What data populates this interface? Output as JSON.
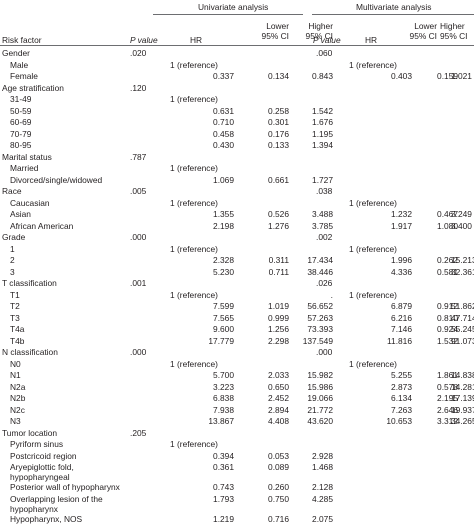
{
  "header": {
    "univariate": "Univariate analysis",
    "multivariate": "Multivariate analysis",
    "risk_factor": "Risk factor",
    "p_value": "P value",
    "hr": "HR",
    "lower1": "Lower",
    "lower2": "95% CI",
    "higher1": "Higher",
    "higher2": "95% CI"
  },
  "rows": [
    {
      "t": "g",
      "label": "Gender",
      "up": ".020",
      "mp": ".060"
    },
    {
      "t": "s",
      "label": "Male",
      "u": "ref",
      "m": "ref"
    },
    {
      "t": "s",
      "label": "Female",
      "uhr": "0.337",
      "ulo": "0.134",
      "uhi": "0.843",
      "mhr": "0.403",
      "mlo": "0.159",
      "mhi": "1.021"
    },
    {
      "t": "g",
      "label": "Age stratification",
      "up": ".120"
    },
    {
      "t": "s",
      "label": "31-49",
      "u": "ref"
    },
    {
      "t": "s",
      "label": "50-59",
      "uhr": "0.631",
      "ulo": "0.258",
      "uhi": "1.542"
    },
    {
      "t": "s",
      "label": "60-69",
      "uhr": "0.710",
      "ulo": "0.301",
      "uhi": "1.676"
    },
    {
      "t": "s",
      "label": "70-79",
      "uhr": "0.458",
      "ulo": "0.176",
      "uhi": "1.195"
    },
    {
      "t": "s",
      "label": "80-95",
      "uhr": "0.430",
      "ulo": "0.133",
      "uhi": "1.394"
    },
    {
      "t": "g",
      "label": "Marital status",
      "up": ".787"
    },
    {
      "t": "s",
      "label": "Married",
      "u": "ref"
    },
    {
      "t": "s",
      "label": "Divorced/single/widowed",
      "uhr": "1.069",
      "ulo": "0.661",
      "uhi": "1.727"
    },
    {
      "t": "g",
      "label": "Race",
      "up": ".005",
      "mp": ".038"
    },
    {
      "t": "s",
      "label": "Caucasian",
      "u": "ref",
      "m": "ref"
    },
    {
      "t": "s",
      "label": "Asian",
      "uhr": "1.355",
      "ulo": "0.526",
      "uhi": "3.488",
      "mhr": "1.232",
      "mlo": "0.467",
      "mhi": "3.249"
    },
    {
      "t": "s",
      "label": "African American",
      "uhr": "2.198",
      "ulo": "1.276",
      "uhi": "3.785",
      "mhr": "1.917",
      "mlo": "1.080",
      "mhi": "3.400"
    },
    {
      "t": "g",
      "label": "Grade",
      "up": ".000",
      "mp": ".002"
    },
    {
      "t": "s",
      "label": "1",
      "u": "ref",
      "m": "ref"
    },
    {
      "t": "s",
      "label": "2",
      "uhr": "2.328",
      "ulo": "0.311",
      "uhi": "17.434",
      "mhr": "1.996",
      "mlo": "0.262",
      "mhi": "15.213"
    },
    {
      "t": "s",
      "label": "3",
      "uhr": "5.230",
      "ulo": "0.711",
      "uhi": "38.446",
      "mhr": "4.336",
      "mlo": "0.581",
      "mhi": "32.361"
    },
    {
      "t": "g",
      "label": "T classification",
      "up": ".001",
      "mp": ".026"
    },
    {
      "t": "s",
      "label": "T1",
      "u": "ref",
      "m": "ref",
      "ulo_dot": "."
    },
    {
      "t": "s",
      "label": "T2",
      "uhr": "7.599",
      "ulo": "1.019",
      "uhi": "56.652",
      "mhr": "6.879",
      "mlo": "0.912",
      "mhi": "51.862"
    },
    {
      "t": "s",
      "label": "T3",
      "uhr": "7.565",
      "ulo": "0.999",
      "uhi": "57.263",
      "mhr": "6.216",
      "mlo": "0.810",
      "mhi": "47.714"
    },
    {
      "t": "s",
      "label": "T4a",
      "uhr": "9.600",
      "ulo": "1.256",
      "uhi": "73.393",
      "mhr": "7.146",
      "mlo": "0.924",
      "mhi": "55.245"
    },
    {
      "t": "s",
      "label": "T4b",
      "uhr": "17.779",
      "ulo": "2.298",
      "uhi": "137.549",
      "mhr": "11.816",
      "mlo": "1.532",
      "mhi": "91.073"
    },
    {
      "t": "g",
      "label": "N classification",
      "up": ".000",
      "mp": ".000"
    },
    {
      "t": "s",
      "label": "N0",
      "u": "ref",
      "m": "ref"
    },
    {
      "t": "s",
      "label": "N1",
      "uhr": "5.700",
      "ulo": "2.033",
      "uhi": "15.982",
      "mhr": "5.255",
      "mlo": "1.861",
      "mhi": "14.838"
    },
    {
      "t": "s",
      "label": "N2a",
      "uhr": "3.223",
      "ulo": "0.650",
      "uhi": "15.986",
      "mhr": "2.873",
      "mlo": "0.578",
      "mhi": "14.281"
    },
    {
      "t": "s",
      "label": "N2b",
      "uhr": "6.838",
      "ulo": "2.452",
      "uhi": "19.066",
      "mhr": "6.134",
      "mlo": "2.195",
      "mhi": "17.139"
    },
    {
      "t": "s",
      "label": "N2c",
      "uhr": "7.938",
      "ulo": "2.894",
      "uhi": "21.772",
      "mhr": "7.263",
      "mlo": "2.646",
      "mhi": "19.937"
    },
    {
      "t": "s",
      "label": "N3",
      "uhr": "13.867",
      "ulo": "4.408",
      "uhi": "43.620",
      "mhr": "10.653",
      "mlo": "3.312",
      "mhi": "34.265"
    },
    {
      "t": "g",
      "label": "Tumor location",
      "up": ".205"
    },
    {
      "t": "s",
      "label": "Pyriform sinus",
      "u": "ref"
    },
    {
      "t": "s",
      "label": "Postcricoid region",
      "uhr": "0.394",
      "ulo": "0.053",
      "uhi": "2.928"
    },
    {
      "t": "s",
      "label": "Aryepiglottic fold, hypopharyngeal",
      "uhr": "0.361",
      "ulo": "0.089",
      "uhi": "1.468",
      "wrap": true
    },
    {
      "t": "s",
      "label": "Posterior wall of hypopharynx",
      "uhr": "0.743",
      "ulo": "0.260",
      "uhi": "2.128"
    },
    {
      "t": "s",
      "label": "Overlapping lesion of the hypopharynx",
      "uhr": "1.793",
      "ulo": "0.750",
      "uhi": "4.285",
      "wrap": true
    },
    {
      "t": "s",
      "label": "Hypopharynx, NOS",
      "uhr": "1.219",
      "ulo": "0.716",
      "uhi": "2.075"
    }
  ],
  "reference_text": "1 (reference)"
}
